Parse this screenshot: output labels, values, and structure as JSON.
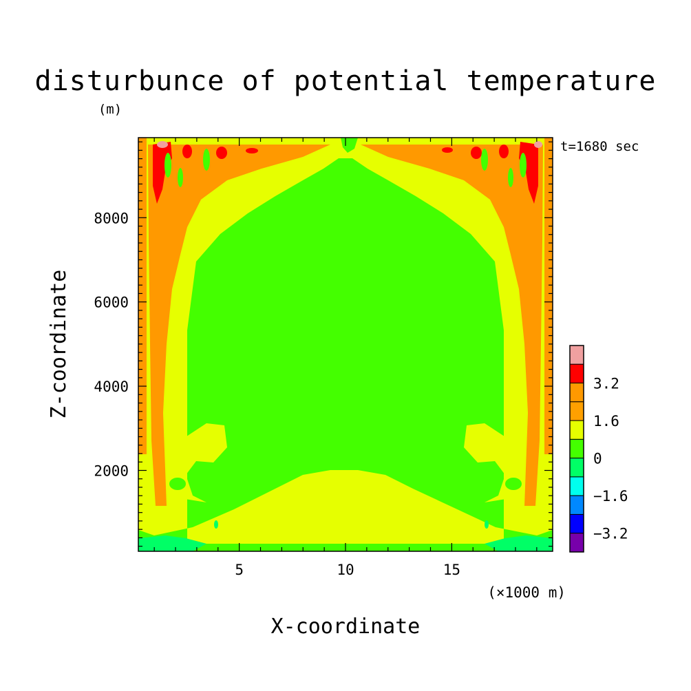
{
  "chart_data": {
    "type": "heatmap",
    "title": "disturbunce of potential temperature",
    "unit_label": "(m)",
    "time_label": "t=1680 sec",
    "xlabel": "X-coordinate",
    "x_unit_label": "(×1000 m)",
    "ylabel": "Z-coordinate",
    "xlim": [
      0.25,
      19.75
    ],
    "ylim": [
      80,
      9900
    ],
    "x_ticks": [
      5,
      10,
      15
    ],
    "x_tick_labels": [
      "5",
      "10",
      "15"
    ],
    "y_ticks": [
      2000,
      4000,
      6000,
      8000
    ],
    "y_tick_labels": [
      "2000",
      "4000",
      "6000",
      "8000"
    ],
    "colorbar": {
      "labels": [
        "3.2",
        "1.6",
        "0",
        "−1.6",
        "−3.2"
      ],
      "levels": [
        {
          "min": 4.0,
          "max": 4.8,
          "color": "#f0a0a0"
        },
        {
          "min": 3.2,
          "max": 4.0,
          "color": "#ff0000"
        },
        {
          "min": 2.4,
          "max": 3.2,
          "color": "#ff9900"
        },
        {
          "min": 1.6,
          "max": 2.4,
          "color": "#ffa000"
        },
        {
          "min": 0.8,
          "max": 1.6,
          "color": "#e6ff00"
        },
        {
          "min": 0.0,
          "max": 0.8,
          "color": "#44ff00"
        },
        {
          "min": -0.8,
          "max": 0.0,
          "color": "#00ff66"
        },
        {
          "min": -1.6,
          "max": -0.8,
          "color": "#00ffee"
        },
        {
          "min": -2.4,
          "max": -1.6,
          "color": "#0088ff"
        },
        {
          "min": -3.2,
          "max": -2.4,
          "color": "#0000ff"
        },
        {
          "min": -4.0,
          "max": -3.2,
          "color": "#7700aa"
        }
      ]
    },
    "field_colors": {
      "background": "#44ff00",
      "warm": "#e6ff00",
      "warmer": "#ff9900",
      "hot": "#ff0000",
      "hottest": "#f0a0a0",
      "cool": "#00ff66"
    }
  }
}
